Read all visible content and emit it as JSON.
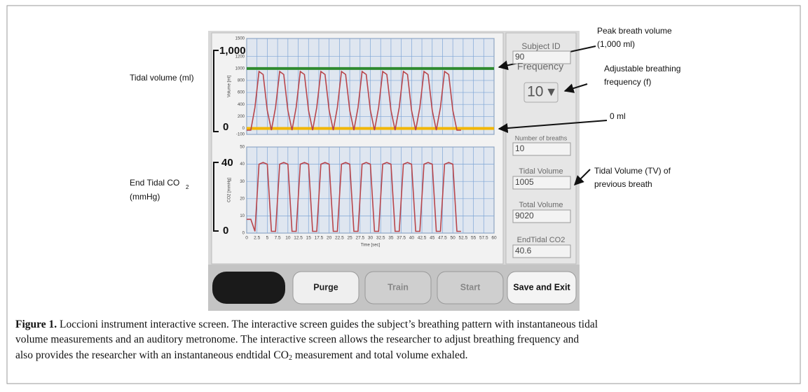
{
  "chart_data": [
    {
      "type": "line",
      "y_label": "Volume [ml]",
      "xlim": [
        0,
        60
      ],
      "ylim": [
        -100,
        1500
      ],
      "yticks": [
        -100,
        0,
        200,
        400,
        600,
        800,
        1000,
        1200,
        1500
      ],
      "grid": true,
      "x": [
        0,
        1,
        2,
        3,
        4,
        5,
        6,
        7,
        8,
        9,
        10,
        11,
        12,
        13,
        14,
        15,
        16,
        17,
        18,
        19,
        20,
        21,
        22,
        23,
        24,
        25,
        26,
        27,
        28,
        29,
        30,
        31,
        32,
        33,
        34,
        35,
        36,
        37,
        38,
        39,
        40,
        41,
        42,
        43,
        44,
        45,
        46,
        47,
        48,
        49,
        50,
        51,
        52
      ],
      "series": [
        {
          "color": "#b8454b",
          "values": [
            -30,
            -30,
            350,
            950,
            900,
            300,
            -30,
            350,
            950,
            900,
            300,
            -30,
            350,
            950,
            900,
            300,
            -30,
            350,
            950,
            900,
            300,
            -30,
            350,
            950,
            900,
            300,
            -30,
            350,
            950,
            900,
            300,
            -30,
            350,
            950,
            900,
            300,
            -30,
            350,
            950,
            900,
            300,
            -30,
            350,
            950,
            900,
            300,
            -30,
            350,
            950,
            900,
            300,
            -30,
            -30
          ]
        }
      ],
      "reference_lines": [
        {
          "value": 1000,
          "color": "#2f8a2f"
        },
        {
          "value": 0,
          "color": "#f2b600"
        }
      ]
    },
    {
      "type": "line",
      "x_label": "Time [sec]",
      "y_label": "CO2 [mmHg]",
      "xlim": [
        0,
        60
      ],
      "ylim": [
        0,
        50
      ],
      "yticks": [
        0,
        10,
        20,
        30,
        40,
        50
      ],
      "xticks": [
        0,
        2.5,
        5,
        7.5,
        10,
        12.5,
        15,
        17.5,
        20,
        22.5,
        25,
        27.5,
        30,
        32.5,
        35,
        37.5,
        40,
        42.5,
        45,
        47.5,
        50,
        52.5,
        55,
        57.5,
        60
      ],
      "grid": true,
      "x": [
        0,
        1,
        2,
        3,
        4,
        5,
        6,
        7,
        8,
        9,
        10,
        11,
        12,
        13,
        14,
        15,
        16,
        17,
        18,
        19,
        20,
        21,
        22,
        23,
        24,
        25,
        26,
        27,
        28,
        29,
        30,
        31,
        32,
        33,
        34,
        35,
        36,
        37,
        38,
        39,
        40,
        41,
        42,
        43,
        44,
        45,
        46,
        47,
        48,
        49,
        50,
        51,
        52
      ],
      "series": [
        {
          "color": "#b8454b",
          "values": [
            8,
            8,
            1,
            40,
            41,
            40,
            1,
            1,
            40,
            41,
            40,
            1,
            1,
            40,
            41,
            40,
            1,
            1,
            40,
            41,
            40,
            1,
            1,
            40,
            41,
            40,
            1,
            1,
            40,
            41,
            40,
            1,
            1,
            40,
            41,
            40,
            1,
            1,
            40,
            41,
            40,
            1,
            1,
            40,
            41,
            40,
            1,
            1,
            40,
            41,
            40,
            1,
            1
          ]
        }
      ]
    }
  ],
  "side_panel": {
    "fields": [
      {
        "label": "Subject ID",
        "value": "90"
      },
      {
        "label": "Frequency",
        "value": "10 ▾"
      },
      {
        "label": "Number of breaths",
        "value": "10"
      },
      {
        "label": "Tidal Volume",
        "value": "1005"
      },
      {
        "label": "Total Volume",
        "value": "9020"
      },
      {
        "label": "EndTidal CO2",
        "value": "40.6"
      }
    ]
  },
  "buttons": [
    "Purge",
    "Train",
    "Start",
    "Save and Exit"
  ],
  "annotations": [
    "Tidal volume (ml)",
    "1,000",
    "0",
    "End Tidal CO",
    "2",
    "(mmHg)",
    "40",
    "0",
    "Peak breath volume",
    "(1,000 ml)",
    "Adjustable breathing",
    "frequency (f)",
    "0 ml",
    "Tidal Volume (TV) of",
    "previous breath"
  ],
  "caption": {
    "label": "Figure 1.",
    "lines": [
      " Loccioni instrument interactive screen. The interactive screen guides the subject’s breathing pattern with instantaneous tidal",
      "volume measurements and an auditory metronome. The interactive screen allows the researcher to adjust breathing frequency and",
      "also provides the researcher with an instantaneous endtidal CO"
    ],
    "subscript": "2",
    "tail": " measurement and total volume exhaled."
  }
}
